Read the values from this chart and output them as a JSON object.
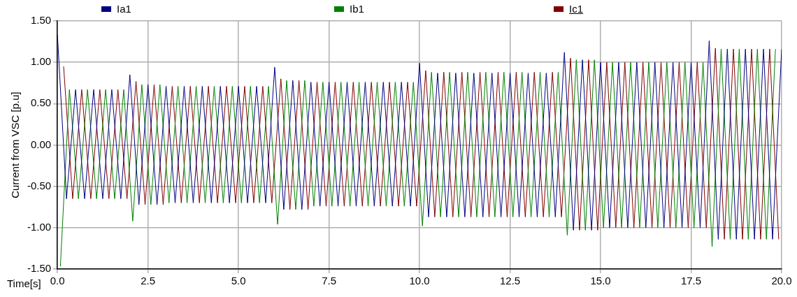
{
  "chart_data": {
    "type": "line",
    "xlabel": "Time[s]",
    "ylabel": "Current from VSC [p.u]",
    "xlim": [
      0,
      20
    ],
    "ylim": [
      -1.5,
      1.5
    ],
    "xticks": [
      {
        "value": 0,
        "label": "0.0"
      },
      {
        "value": 2.5,
        "label": "2.5"
      },
      {
        "value": 5,
        "label": "5.0"
      },
      {
        "value": 7.5,
        "label": "7.5"
      },
      {
        "value": 10,
        "label": "10.0"
      },
      {
        "value": 12.5,
        "label": "12.5"
      },
      {
        "value": 15,
        "label": "15.0"
      },
      {
        "value": 17.5,
        "label": "17.5"
      },
      {
        "value": 20,
        "label": "20.0"
      }
    ],
    "yticks": [
      {
        "value": -1.5,
        "label": "-1.50"
      },
      {
        "value": -1,
        "label": "-1.00"
      },
      {
        "value": -0.5,
        "label": "-0.50"
      },
      {
        "value": 0,
        "label": "0.00"
      },
      {
        "value": 0.5,
        "label": "0.50"
      },
      {
        "value": 1,
        "label": "1.00"
      },
      {
        "value": 1.5,
        "label": "1.50"
      }
    ],
    "grid": true,
    "legend": "top",
    "series": [
      {
        "name": "Ia1",
        "color": "#000080",
        "x": [
          0,
          0.25,
          0.5,
          0.75,
          1,
          1.25,
          1.5,
          1.75,
          2,
          2.25,
          2.5,
          2.75,
          3,
          3.25,
          3.5,
          3.75,
          4,
          4.25,
          4.5,
          4.75,
          5,
          5.25,
          5.5,
          5.75,
          6,
          6.25,
          6.5,
          6.75,
          7,
          7.25,
          7.5,
          7.75,
          8,
          8.25,
          8.5,
          8.75,
          9,
          9.25,
          9.5,
          9.75,
          10,
          10.25,
          10.5,
          10.75,
          11,
          11.25,
          11.5,
          11.75,
          12,
          12.25,
          12.5,
          12.75,
          13,
          13.25,
          13.5,
          13.75,
          14,
          14.25,
          14.5,
          14.75,
          15,
          15.25,
          15.5,
          15.75,
          16,
          16.25,
          16.5,
          16.75,
          17,
          17.25,
          17.5,
          17.75,
          18,
          18.25,
          18.5,
          18.75,
          19,
          19.25,
          19.5,
          19.75,
          20
        ],
        "values": [
          1.33,
          -0.65,
          0.67,
          -0.65,
          0.67,
          -0.65,
          0.67,
          -0.65,
          0.85,
          -0.72,
          0.73,
          -0.72,
          0.71,
          -0.7,
          0.71,
          -0.7,
          0.71,
          -0.7,
          0.71,
          -0.7,
          0.71,
          -0.7,
          0.71,
          -0.7,
          0.94,
          -0.78,
          0.78,
          -0.78,
          0.76,
          -0.74,
          0.76,
          -0.74,
          0.76,
          -0.74,
          0.76,
          -0.74,
          0.76,
          -0.74,
          0.76,
          -0.74,
          0.99,
          -0.87,
          0.87,
          -0.87,
          0.87,
          -0.87,
          0.87,
          -0.87,
          0.87,
          -0.87,
          0.87,
          -0.87,
          0.87,
          -0.87,
          0.87,
          -0.87,
          1.12,
          -1.03,
          1.03,
          -1.03,
          1,
          -1,
          1,
          -1,
          1,
          -1,
          1,
          -1,
          1,
          -1,
          1,
          -1,
          1.26,
          -1.14,
          1.16,
          -1.14,
          1.16,
          -1.14,
          1.16,
          -1.14,
          1.16
        ]
      },
      {
        "name": "Ib1",
        "color": "#008000",
        "x": [
          0.08,
          0.33,
          0.58,
          0.83,
          1.08,
          1.33,
          1.58,
          1.83,
          2.08,
          2.33,
          2.58,
          2.83,
          3.08,
          3.33,
          3.58,
          3.83,
          4.08,
          4.33,
          4.58,
          4.83,
          5.08,
          5.33,
          5.58,
          5.83,
          6.08,
          6.33,
          6.58,
          6.83,
          7.08,
          7.33,
          7.58,
          7.83,
          8.08,
          8.33,
          8.58,
          8.83,
          9.08,
          9.33,
          9.58,
          9.83,
          10.08,
          10.33,
          10.58,
          10.83,
          11.08,
          11.33,
          11.58,
          11.83,
          12.08,
          12.33,
          12.58,
          12.83,
          13.08,
          13.33,
          13.58,
          13.83,
          14.08,
          14.33,
          14.58,
          14.83,
          15.08,
          15.33,
          15.58,
          15.83,
          16.08,
          16.33,
          16.58,
          16.83,
          17.08,
          17.33,
          17.58,
          17.83,
          18.08,
          18.33,
          18.58,
          18.83,
          19.08,
          19.33,
          19.58,
          19.83
        ],
        "values": [
          -1.47,
          0.67,
          -0.65,
          0.67,
          -0.65,
          0.67,
          -0.65,
          0.67,
          -0.92,
          0.73,
          -0.72,
          0.73,
          -0.7,
          0.71,
          -0.7,
          0.71,
          -0.7,
          0.71,
          -0.7,
          0.71,
          -0.7,
          0.71,
          -0.7,
          0.71,
          -0.96,
          0.78,
          -0.78,
          0.78,
          -0.74,
          0.76,
          -0.74,
          0.76,
          -0.74,
          0.76,
          -0.74,
          0.76,
          -0.74,
          0.76,
          -0.74,
          0.76,
          -0.98,
          0.88,
          -0.87,
          0.88,
          -0.87,
          0.88,
          -0.87,
          0.88,
          -0.87,
          0.88,
          -0.87,
          0.88,
          -0.87,
          0.88,
          -0.87,
          0.88,
          -1.09,
          1.03,
          -1.03,
          1.03,
          -1,
          1,
          -1,
          1,
          -1,
          1,
          -1,
          1,
          -1,
          1,
          -1,
          1,
          -1.23,
          1.16,
          -1.14,
          1.16,
          -1.14,
          1.16,
          -1.14,
          1.16
        ]
      },
      {
        "name": "Ic1",
        "color": "#800000",
        "x": [
          0.17,
          0.42,
          0.67,
          0.92,
          1.17,
          1.42,
          1.67,
          1.92,
          2.17,
          2.42,
          2.67,
          2.92,
          3.17,
          3.42,
          3.67,
          3.92,
          4.17,
          4.42,
          4.67,
          4.92,
          5.17,
          5.42,
          5.67,
          5.92,
          6.17,
          6.42,
          6.67,
          6.92,
          7.17,
          7.42,
          7.67,
          7.92,
          8.17,
          8.42,
          8.67,
          8.92,
          9.17,
          9.42,
          9.67,
          9.92,
          10.17,
          10.42,
          10.67,
          10.92,
          11.17,
          11.42,
          11.67,
          11.92,
          12.17,
          12.42,
          12.67,
          12.92,
          13.17,
          13.42,
          13.67,
          13.92,
          14.17,
          14.42,
          14.67,
          14.92,
          15.17,
          15.42,
          15.67,
          15.92,
          16.17,
          16.42,
          16.67,
          16.92,
          17.17,
          17.42,
          17.67,
          17.92,
          18.17,
          18.42,
          18.67,
          18.92,
          19.17,
          19.42,
          19.67,
          19.92
        ],
        "values": [
          0.95,
          -0.65,
          0.67,
          -0.65,
          0.67,
          -0.65,
          0.67,
          -0.65,
          0.77,
          -0.72,
          0.73,
          -0.72,
          0.71,
          -0.7,
          0.71,
          -0.7,
          0.71,
          -0.7,
          0.71,
          -0.7,
          0.71,
          -0.7,
          0.71,
          -0.7,
          0.8,
          -0.78,
          0.78,
          -0.78,
          0.76,
          -0.74,
          0.76,
          -0.74,
          0.76,
          -0.74,
          0.76,
          -0.74,
          0.76,
          -0.74,
          0.76,
          -0.74,
          0.9,
          -0.87,
          0.88,
          -0.87,
          0.88,
          -0.87,
          0.88,
          -0.87,
          0.88,
          -0.87,
          0.88,
          -0.87,
          0.88,
          -0.87,
          0.88,
          -0.87,
          1.05,
          -1.03,
          1.03,
          -1.03,
          1,
          -1,
          1,
          -1,
          1,
          -1,
          1,
          -1,
          1,
          -1,
          1,
          -1,
          1.17,
          -1.14,
          1.16,
          -1.14,
          1.16,
          -1.14,
          1.16,
          -1.14
        ]
      }
    ]
  }
}
